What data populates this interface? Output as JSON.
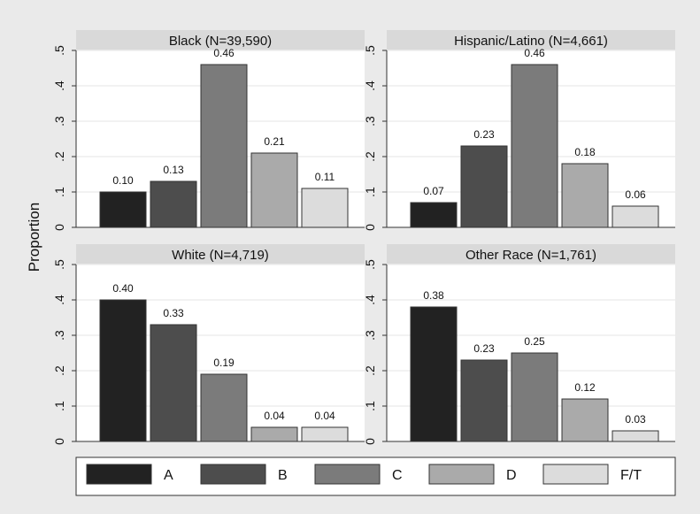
{
  "chart_data": {
    "type": "bar",
    "ylabel": "Proportion",
    "ylim": [
      0,
      0.5
    ],
    "yticks": [
      0,
      0.1,
      0.2,
      0.3,
      0.4,
      0.5
    ],
    "ytick_labels": [
      "0",
      ".1",
      ".2",
      ".3",
      ".4",
      ".5"
    ],
    "categories": [
      "A",
      "B",
      "C",
      "D",
      "F/T"
    ],
    "colors": [
      "#222222",
      "#4d4d4d",
      "#7b7b7b",
      "#aaaaaa",
      "#dcdcdc"
    ],
    "legend_position": "bottom",
    "panels": [
      {
        "title": "Black (N=39,590)",
        "values": [
          0.1,
          0.13,
          0.46,
          0.21,
          0.11
        ],
        "labels": [
          "0.10",
          "0.13",
          "0.46",
          "0.21",
          "0.11"
        ]
      },
      {
        "title": "Hispanic/Latino (N=4,661)",
        "values": [
          0.07,
          0.23,
          0.46,
          0.18,
          0.06
        ],
        "labels": [
          "0.07",
          "0.23",
          "0.46",
          "0.18",
          "0.06"
        ]
      },
      {
        "title": "White (N=4,719)",
        "values": [
          0.4,
          0.33,
          0.19,
          0.04,
          0.04
        ],
        "labels": [
          "0.40",
          "0.33",
          "0.19",
          "0.04",
          "0.04"
        ]
      },
      {
        "title": "Other Race (N=1,761)",
        "values": [
          0.38,
          0.23,
          0.25,
          0.12,
          0.03
        ],
        "labels": [
          "0.38",
          "0.23",
          "0.25",
          "0.12",
          "0.03"
        ]
      }
    ]
  }
}
